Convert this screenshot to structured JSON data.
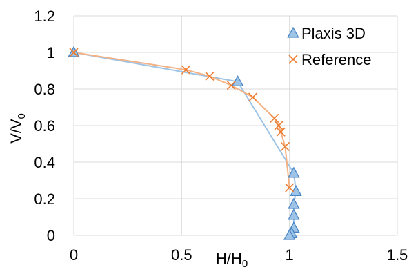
{
  "chart_data": {
    "type": "scatter",
    "xlabel": "H/H",
    "xlabel_sub": "0",
    "ylabel": "V/V",
    "ylabel_sub": "0",
    "xlim": [
      0,
      1.5
    ],
    "ylim": [
      0,
      1.2
    ],
    "x_ticks": [
      "0",
      "0.5",
      "1",
      "1.5"
    ],
    "y_ticks": [
      "0",
      "0.2",
      "0.4",
      "0.6",
      "0.8",
      "1",
      "1.2"
    ],
    "grid": true,
    "legend_position": "top-right",
    "series": [
      {
        "name": "Plaxis 3D",
        "color": "#9dc3e6",
        "marker": "triangle",
        "marker_color": "#4a86c5",
        "points": [
          [
            0.0,
            1.0
          ],
          [
            0.76,
            0.84
          ],
          [
            1.02,
            0.34
          ],
          [
            1.03,
            0.24
          ],
          [
            1.02,
            0.17
          ],
          [
            1.02,
            0.11
          ],
          [
            1.02,
            0.04
          ],
          [
            1.01,
            0.01
          ],
          [
            1.0,
            0.0
          ]
        ]
      },
      {
        "name": "Reference",
        "color": "#f4b183",
        "marker": "x",
        "marker_color": "#ed7d31",
        "points": [
          [
            0.0,
            1.0
          ],
          [
            0.52,
            0.905
          ],
          [
            0.63,
            0.87
          ],
          [
            0.73,
            0.82
          ],
          [
            0.83,
            0.755
          ],
          [
            0.93,
            0.64
          ],
          [
            0.95,
            0.6
          ],
          [
            0.96,
            0.565
          ],
          [
            0.98,
            0.485
          ],
          [
            1.0,
            0.26
          ]
        ]
      }
    ]
  }
}
